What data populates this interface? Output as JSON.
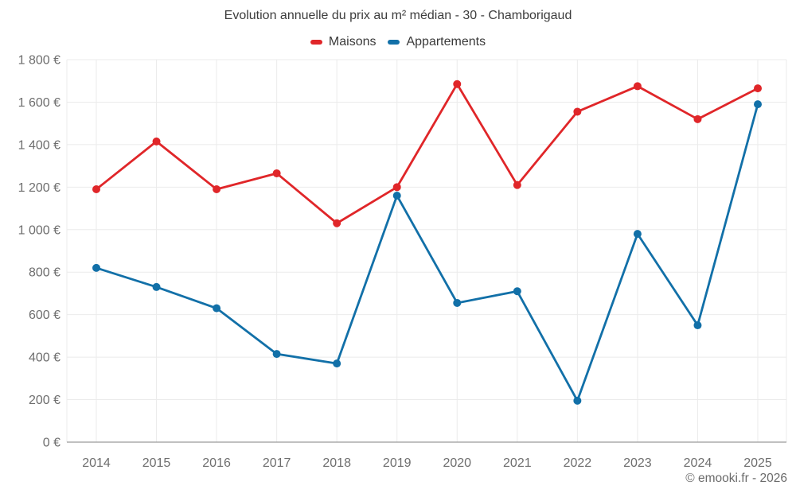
{
  "header": {
    "title": "Evolution annuelle du prix au m² médian - 30 - Chamborigaud"
  },
  "footer": {
    "copyright": "© emooki.fr - 2026"
  },
  "chart_data": {
    "type": "line",
    "title": "Evolution annuelle du prix au m² médian - 30 - Chamborigaud",
    "x": [
      2014,
      2015,
      2016,
      2017,
      2018,
      2019,
      2020,
      2021,
      2022,
      2023,
      2024,
      2025
    ],
    "series": [
      {
        "name": "Maisons",
        "color": "#e02629",
        "values": [
          1190,
          1415,
          1190,
          1265,
          1030,
          1200,
          1685,
          1210,
          1555,
          1675,
          1520,
          1665
        ]
      },
      {
        "name": "Appartements",
        "color": "#1270a8",
        "values": [
          820,
          730,
          630,
          415,
          370,
          1160,
          655,
          710,
          195,
          980,
          550,
          1590
        ]
      }
    ],
    "ylim": [
      0,
      1800
    ],
    "ytick_step": 200,
    "ytick_labels": [
      "0 €",
      "200 €",
      "400 €",
      "600 €",
      "800 €",
      "1 000 €",
      "1 200 €",
      "1 400 €",
      "1 600 €",
      "1 800 €"
    ],
    "xlabel": "",
    "ylabel": "",
    "grid": true,
    "legend_position": "top-center",
    "currency": "€",
    "colors": {
      "gridline": "#ebebeb",
      "axis_line": "#9b9b9b",
      "tick_text": "#6e6e6e",
      "title_text": "#3d3d3d"
    }
  }
}
